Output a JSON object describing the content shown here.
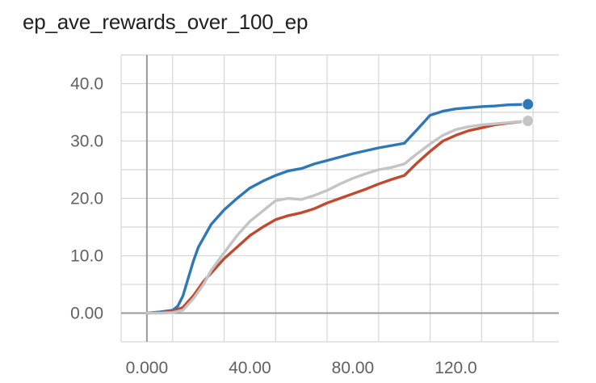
{
  "chart_data": {
    "type": "line",
    "title": "ep_ave_rewards_over_100_ep",
    "xlabel": "",
    "ylabel": "",
    "xlim": [
      -10,
      160
    ],
    "ylim": [
      -5,
      45
    ],
    "x_ticks": [
      0,
      40,
      80,
      120
    ],
    "x_tick_labels": [
      "0.000",
      "40.00",
      "80.00",
      "120.0"
    ],
    "y_ticks": [
      0,
      10,
      20,
      30,
      40
    ],
    "y_tick_labels": [
      "0.00",
      "10.0",
      "20.0",
      "30.0",
      "40.0"
    ],
    "x_grid_step": 20,
    "y_grid_step": 5,
    "grid": true,
    "series": [
      {
        "color": "#2f78b7",
        "x": [
          0,
          5,
          10,
          12,
          14,
          16,
          18,
          20,
          25,
          30,
          35,
          40,
          45,
          50,
          55,
          60,
          65,
          70,
          75,
          80,
          90,
          100,
          105,
          110,
          115,
          120,
          125,
          130,
          135,
          140,
          148
        ],
        "y": [
          0,
          0.2,
          0.5,
          1.2,
          3,
          6,
          9,
          11.5,
          15.5,
          18,
          20,
          21.8,
          23,
          24,
          24.8,
          25.2,
          26,
          26.6,
          27.2,
          27.8,
          28.8,
          29.6,
          32,
          34.5,
          35.2,
          35.6,
          35.8,
          36,
          36.1,
          36.3,
          36.4
        ]
      },
      {
        "color": "#c0492e",
        "x": [
          0,
          5,
          10,
          14,
          18,
          22,
          25,
          30,
          35,
          40,
          45,
          50,
          55,
          60,
          65,
          70,
          75,
          80,
          85,
          90,
          95,
          100,
          105,
          110,
          115,
          120,
          125,
          130,
          135,
          140,
          148
        ],
        "y": [
          0,
          0.1,
          0.3,
          1,
          3,
          5.5,
          7,
          9.5,
          11.5,
          13.5,
          15,
          16.3,
          17,
          17.5,
          18.2,
          19.2,
          20,
          20.8,
          21.6,
          22.5,
          23.3,
          24,
          26.2,
          28.2,
          30,
          31,
          31.8,
          32.3,
          32.8,
          33.1,
          33.5
        ]
      },
      {
        "color": "#c4c4c4",
        "x": [
          0,
          5,
          10,
          14,
          18,
          22,
          25,
          30,
          35,
          40,
          45,
          50,
          55,
          60,
          65,
          70,
          75,
          80,
          85,
          90,
          95,
          100,
          105,
          110,
          115,
          120,
          125,
          130,
          135,
          140,
          148
        ],
        "y": [
          0,
          0,
          0.1,
          0.5,
          2.5,
          5,
          7.5,
          10.5,
          13.5,
          16,
          17.8,
          19.6,
          20,
          19.8,
          20.5,
          21.4,
          22.5,
          23.5,
          24.3,
          25,
          25.4,
          26,
          27.8,
          29.5,
          31,
          32,
          32.5,
          32.8,
          33,
          33.2,
          33.5
        ]
      }
    ]
  }
}
